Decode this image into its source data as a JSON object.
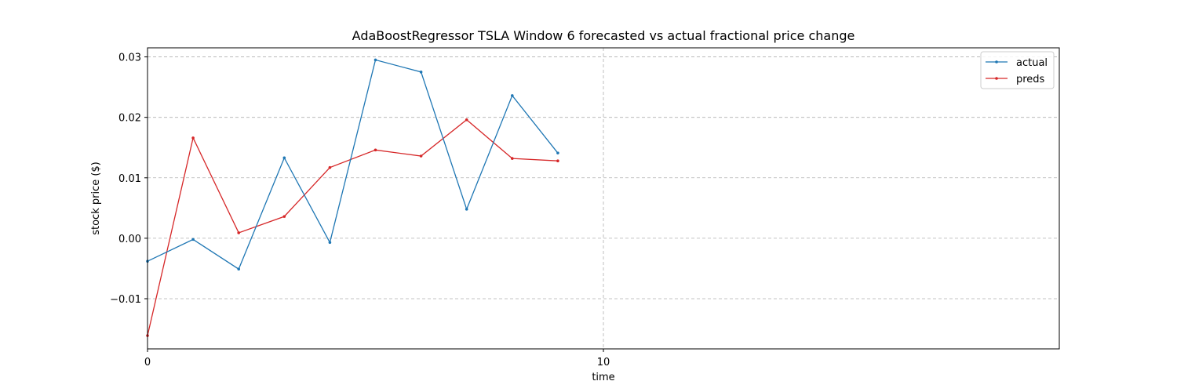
{
  "chart_data": {
    "type": "line",
    "title": "AdaBoostRegressor TSLA Window 6 forecasted vs actual fractional price change",
    "xlabel": "time",
    "ylabel": "stock price ($)",
    "xlim": [
      0,
      20
    ],
    "ylim": [
      -0.0183,
      0.0315
    ],
    "xticks": [
      0,
      10
    ],
    "xtick_labels": [
      "0",
      "10"
    ],
    "yticks": [
      -0.01,
      0.0,
      0.01,
      0.02,
      0.03
    ],
    "ytick_labels": [
      "−0.01",
      "0.00",
      "0.01",
      "0.02",
      "0.03"
    ],
    "grid": true,
    "legend_position": "top-right",
    "x": [
      0,
      1,
      2,
      3,
      4,
      5,
      6,
      7,
      8,
      9
    ],
    "series": [
      {
        "name": "actual",
        "color": "#1f77b4",
        "values": [
          -0.0038,
          -0.0002,
          -0.0051,
          0.0133,
          -0.0007,
          0.0295,
          0.0275,
          0.0048,
          0.0236,
          0.0141
        ]
      },
      {
        "name": "preds",
        "color": "#d62728",
        "values": [
          -0.0161,
          0.0166,
          0.0009,
          0.0036,
          0.0117,
          0.0146,
          0.0136,
          0.0196,
          0.0132,
          0.0128
        ]
      }
    ]
  }
}
